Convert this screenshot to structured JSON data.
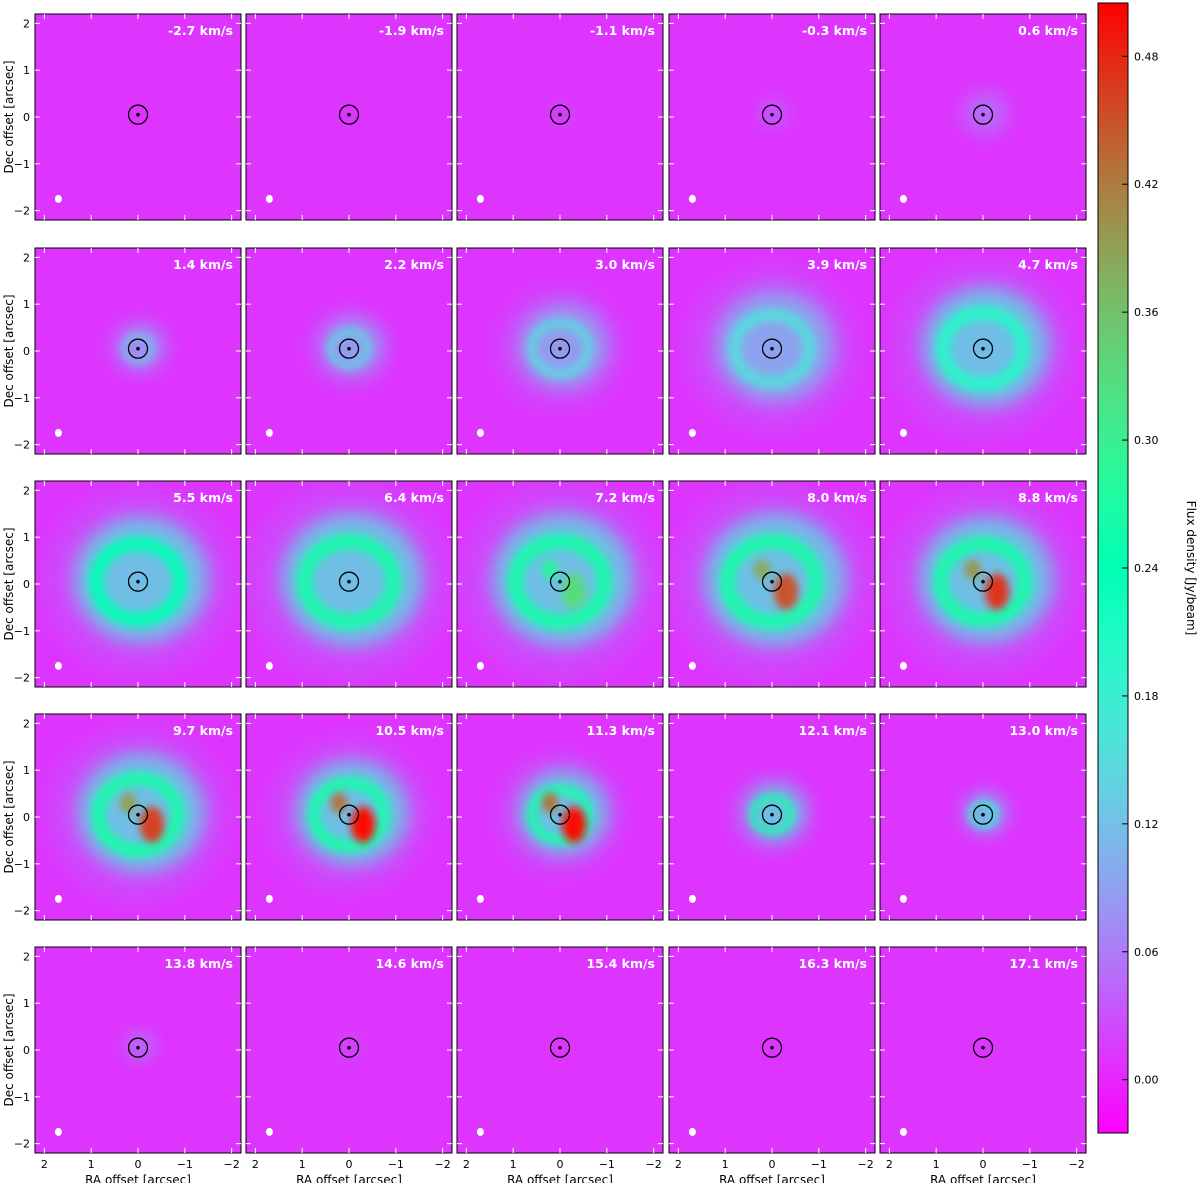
{
  "chart_data": {
    "type": "heatmap",
    "layout": "5x5 channel-map grid",
    "xlabel": "RA offset [arcsec]",
    "ylabel": "Dec offset [arcsec]",
    "xlim": [
      2.2,
      -2.2
    ],
    "ylim": [
      -2.2,
      2.2
    ],
    "x_ticks": [
      2,
      1,
      0,
      -1,
      -2
    ],
    "x_tick_labels": [
      "2",
      "1",
      "0",
      "−1",
      "−2"
    ],
    "y_ticks": [
      2,
      1,
      0,
      -1,
      -2
    ],
    "y_tick_labels": [
      "2",
      "1",
      "0",
      "−1",
      "−2"
    ],
    "colorbar": {
      "label": "Flux density [Jy/beam]",
      "min": -0.025,
      "max": 0.505,
      "ticks": [
        0.0,
        0.06,
        0.12,
        0.18,
        0.24,
        0.3,
        0.36,
        0.42,
        0.48
      ],
      "tick_labels": [
        "0.00",
        "0.06",
        "0.12",
        "0.18",
        "0.24",
        "0.30",
        "0.36",
        "0.42",
        "0.48"
      ],
      "colormap": "rainbow"
    },
    "stellar_marker": {
      "x": 0,
      "y": 0.05,
      "circle_radius_arcsec": 0.16
    },
    "beam": {
      "x": 1.7,
      "y": -1.75
    },
    "channels": [
      {
        "velocity": "-2.7 km/s",
        "peak": 0.0,
        "extent_arcsec": 0.0
      },
      {
        "velocity": "-1.9 km/s",
        "peak": 0.0,
        "extent_arcsec": 0.0
      },
      {
        "velocity": "-1.1 km/s",
        "peak": 0.03,
        "extent_arcsec": 0.2
      },
      {
        "velocity": "-0.3 km/s",
        "peak": 0.06,
        "extent_arcsec": 0.3
      },
      {
        "velocity": "0.6 km/s",
        "peak": 0.08,
        "extent_arcsec": 0.5
      },
      {
        "velocity": "1.4 km/s",
        "peak": 0.12,
        "extent_arcsec": 0.6
      },
      {
        "velocity": "2.2 km/s",
        "peak": 0.14,
        "extent_arcsec": 0.8
      },
      {
        "velocity": "3.0 km/s",
        "peak": 0.14,
        "extent_arcsec": 1.2
      },
      {
        "velocity": "3.9 km/s",
        "peak": 0.15,
        "extent_arcsec": 1.6
      },
      {
        "velocity": "4.7 km/s",
        "peak": 0.2,
        "extent_arcsec": 1.7
      },
      {
        "velocity": "5.5 km/s",
        "peak": 0.24,
        "extent_arcsec": 1.8
      },
      {
        "velocity": "6.4 km/s",
        "peak": 0.26,
        "extent_arcsec": 1.9
      },
      {
        "velocity": "7.2 km/s",
        "peak": 0.33,
        "extent_arcsec": 1.9
      },
      {
        "velocity": "8.0 km/s",
        "peak": 0.45,
        "extent_arcsec": 1.9
      },
      {
        "velocity": "8.8 km/s",
        "peak": 0.47,
        "extent_arcsec": 1.8
      },
      {
        "velocity": "9.7 km/s",
        "peak": 0.46,
        "extent_arcsec": 1.7
      },
      {
        "velocity": "10.5 km/s",
        "peak": 0.5,
        "extent_arcsec": 1.5
      },
      {
        "velocity": "11.3 km/s",
        "peak": 0.5,
        "extent_arcsec": 1.2
      },
      {
        "velocity": "12.1 km/s",
        "peak": 0.26,
        "extent_arcsec": 0.8
      },
      {
        "velocity": "13.0 km/s",
        "peak": 0.18,
        "extent_arcsec": 0.5
      },
      {
        "velocity": "13.8 km/s",
        "peak": 0.1,
        "extent_arcsec": 0.3
      },
      {
        "velocity": "14.6 km/s",
        "peak": 0.04,
        "extent_arcsec": 0.2
      },
      {
        "velocity": "15.4 km/s",
        "peak": 0.0,
        "extent_arcsec": 0.0
      },
      {
        "velocity": "16.3 km/s",
        "peak": 0.0,
        "extent_arcsec": 0.0
      },
      {
        "velocity": "17.1 km/s",
        "peak": 0.0,
        "extent_arcsec": 0.0
      }
    ]
  }
}
